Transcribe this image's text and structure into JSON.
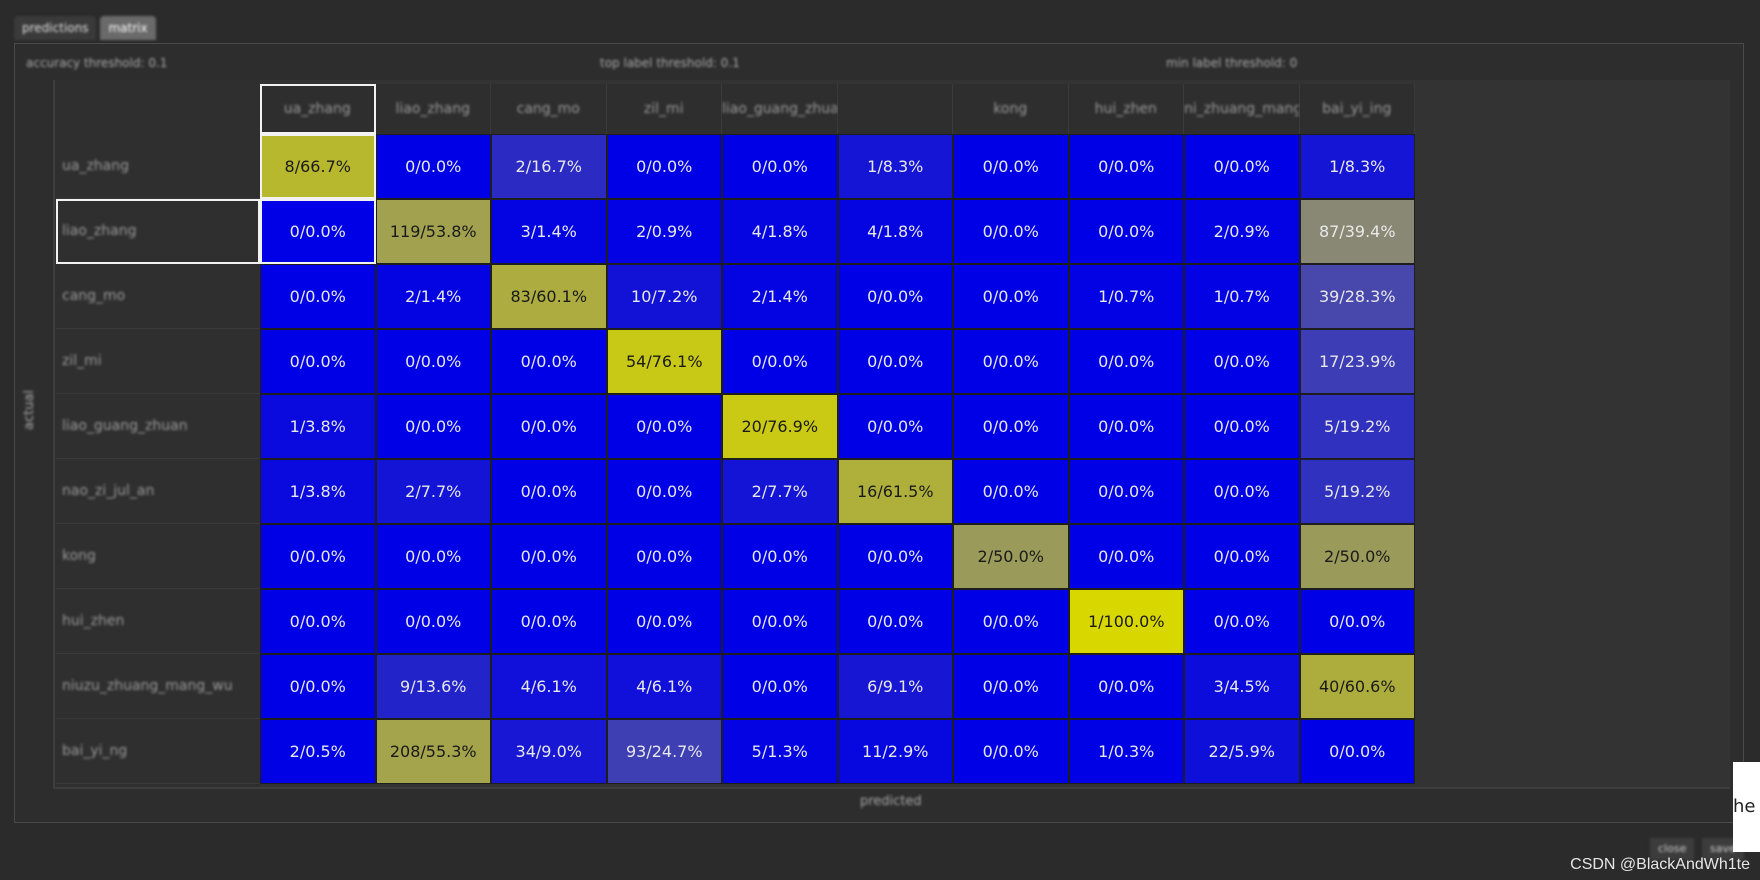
{
  "tabs": [
    {
      "label": "predictions"
    },
    {
      "label": "matrix"
    }
  ],
  "stats": [
    {
      "label": "accuracy threshold: 0.1"
    },
    {
      "label": "top label threshold: 0.1"
    },
    {
      "label": "min label threshold: 0"
    }
  ],
  "chart_data": {
    "type": "heatmap",
    "title": "",
    "xlabel": "predicted",
    "ylabel": "actual",
    "row_labels": [
      "ua_zhang",
      "liao_zhang",
      "cang_mo",
      "zil_mi",
      "liao_guang_zhuan",
      "nao_zi_jul_an",
      "kong",
      "hui_zhen",
      "niuzu_zhuang_mang_wu",
      "bai_yi_ng"
    ],
    "column_labels": [
      "ua_zhang",
      "liao_zhang",
      "cang_mo",
      "zil_mi",
      "liao_guang_zhuannao_zil_yi_jia",
      "",
      "kong",
      "hui_zhen",
      "ni_zhuang_mang",
      "bai_yi_ing"
    ],
    "cell_format": "count/percent",
    "rows": [
      {
        "cells": [
          "8/66.7%",
          "0/0.0%",
          "2/16.7%",
          "0/0.0%",
          "0/0.0%",
          "1/8.3%",
          "0/0.0%",
          "0/0.0%",
          "0/0.0%",
          "1/8.3%"
        ]
      },
      {
        "cells": [
          "0/0.0%",
          "119/53.8%",
          "3/1.4%",
          "2/0.9%",
          "4/1.8%",
          "4/1.8%",
          "0/0.0%",
          "0/0.0%",
          "2/0.9%",
          "87/39.4%"
        ]
      },
      {
        "cells": [
          "0/0.0%",
          "2/1.4%",
          "83/60.1%",
          "10/7.2%",
          "2/1.4%",
          "0/0.0%",
          "0/0.0%",
          "1/0.7%",
          "1/0.7%",
          "39/28.3%"
        ]
      },
      {
        "cells": [
          "0/0.0%",
          "0/0.0%",
          "0/0.0%",
          "54/76.1%",
          "0/0.0%",
          "0/0.0%",
          "0/0.0%",
          "0/0.0%",
          "0/0.0%",
          "17/23.9%"
        ]
      },
      {
        "cells": [
          "1/3.8%",
          "0/0.0%",
          "0/0.0%",
          "0/0.0%",
          "20/76.9%",
          "0/0.0%",
          "0/0.0%",
          "0/0.0%",
          "0/0.0%",
          "5/19.2%"
        ]
      },
      {
        "cells": [
          "1/3.8%",
          "2/7.7%",
          "0/0.0%",
          "0/0.0%",
          "2/7.7%",
          "16/61.5%",
          "0/0.0%",
          "0/0.0%",
          "0/0.0%",
          "5/19.2%"
        ]
      },
      {
        "cells": [
          "0/0.0%",
          "0/0.0%",
          "0/0.0%",
          "0/0.0%",
          "0/0.0%",
          "0/0.0%",
          "2/50.0%",
          "0/0.0%",
          "0/0.0%",
          "2/50.0%"
        ]
      },
      {
        "cells": [
          "0/0.0%",
          "0/0.0%",
          "0/0.0%",
          "0/0.0%",
          "0/0.0%",
          "0/0.0%",
          "0/0.0%",
          "1/100.0%",
          "0/0.0%",
          "0/0.0%"
        ]
      },
      {
        "cells": [
          "0/0.0%",
          "9/13.6%",
          "4/6.1%",
          "4/6.1%",
          "0/0.0%",
          "6/9.1%",
          "0/0.0%",
          "0/0.0%",
          "3/4.5%",
          "40/60.6%"
        ]
      },
      {
        "cells": [
          "2/0.5%",
          "208/55.3%",
          "34/9.0%",
          "93/24.7%",
          "5/1.3%",
          "11/2.9%",
          "0/0.0%",
          "1/0.3%",
          "22/5.9%",
          "0/0.0%"
        ]
      }
    ],
    "colors": {
      "low": "#0000e6",
      "high": "#d8d800",
      "neutral_mid": "#808080"
    },
    "selected_cells": [
      [
        0,
        0
      ],
      [
        1,
        0
      ]
    ],
    "selected_row_header": 1,
    "selected_col_header": 0
  },
  "footer": {
    "buttons": [
      {
        "label": "close"
      },
      {
        "label": "save"
      }
    ]
  },
  "popup_text": "he s",
  "watermark": "CSDN @BlackAndWh1te"
}
